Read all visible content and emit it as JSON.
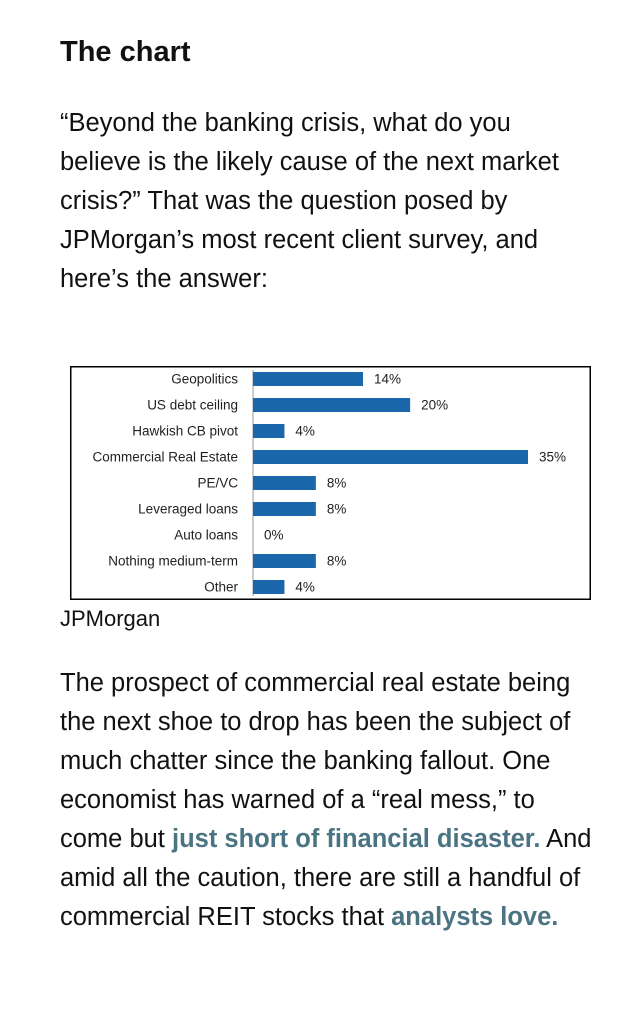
{
  "heading": "The chart",
  "intro": "“Beyond the banking crisis, what do you believe is the likely cause of the next market crisis?” That was the question posed by JPMorgan’s most recent client survey, and here’s the answer:",
  "chart_data": {
    "type": "bar",
    "orientation": "horizontal",
    "categories": [
      "Geopolitics",
      "US debt ceiling",
      "Hawkish CB pivot",
      "Commercial Real Estate",
      "PE/VC",
      "Leveraged loans",
      "Auto loans",
      "Nothing medium-term",
      "Other"
    ],
    "values": [
      14,
      20,
      4,
      35,
      8,
      8,
      0,
      8,
      4
    ],
    "value_labels": [
      "14%",
      "20%",
      "4%",
      "35%",
      "8%",
      "8%",
      "0%",
      "8%",
      "4%"
    ],
    "color": "#1a68ab"
  },
  "caption": "JPMorgan",
  "body": {
    "parts": [
      {
        "text": "The prospect of commercial real estate being the next shoe to drop has been the subject of much chatter since the banking fallout. One economist has warned of a “real mess,” to come but "
      },
      {
        "text": "just short of financial disaster.",
        "link": true
      },
      {
        "text": " And amid all the caution, there are still a handful of commercial REIT stocks that "
      },
      {
        "text": "analysts love.",
        "link": true
      }
    ]
  }
}
